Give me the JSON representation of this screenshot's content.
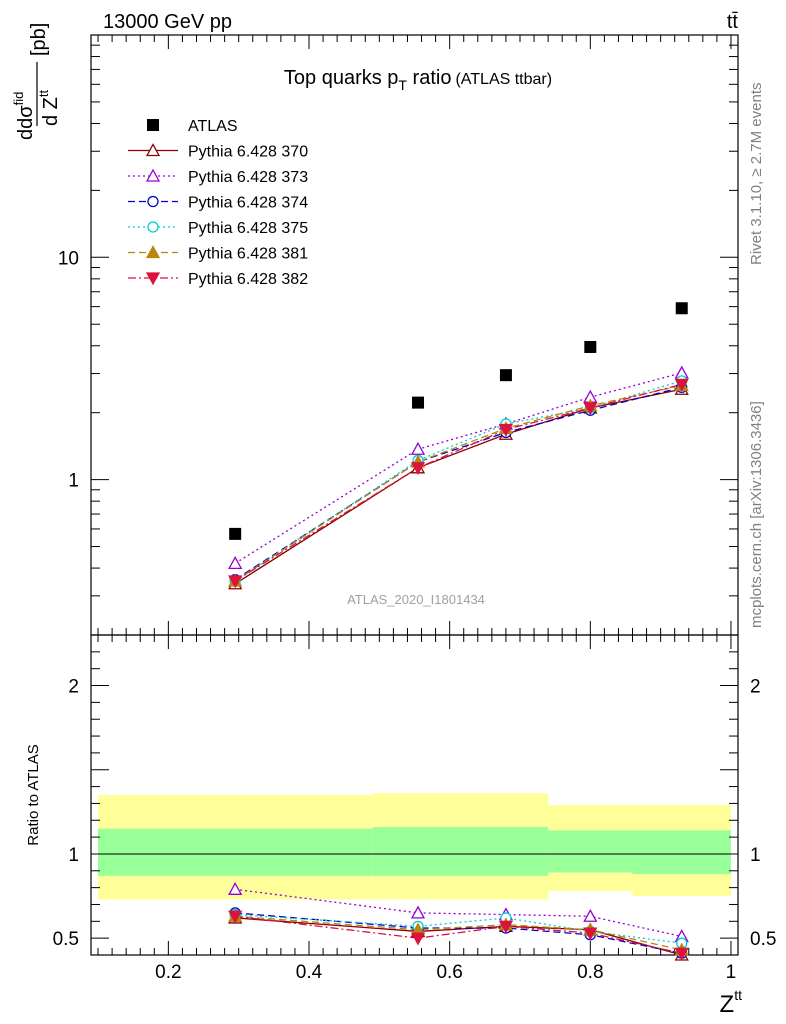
{
  "header": {
    "energy_label": "13000 GeV pp",
    "process_label": "tt̄",
    "side_top": "Rivet 3.1.10, ≥ 2.7M events",
    "side_bottom": "mcplots.cern.ch [arXiv:1306.3436]",
    "watermark": "ATLAS_2020_I1801434"
  },
  "colors": {
    "atlas": "#000000",
    "p370": "#8b0000",
    "p373": "#9400d3",
    "p374": "#0000cd",
    "p375": "#00ced1",
    "p381": "#b8860b",
    "p382": "#dc143c",
    "band_outer": "#ffff99",
    "band_inner": "#99ff99"
  },
  "chart_data": {
    "type": "scatter",
    "title": "Top quarks p",
    "title_sub": "T",
    "title_rest": " ratio",
    "title_paren": "(ATLAS ttbar)",
    "xlabel": "Z",
    "xlabel_sup": "tt",
    "ylabel_top": {
      "num": "dσ",
      "num_sup": "fid",
      "den": "d Z",
      "den_sup": "tt",
      "unit": "[pb]"
    },
    "ylabel_ratio": "Ratio to ATLAS",
    "xlim": [
      0.09,
      1.01
    ],
    "ylim_top": [
      0.2,
      100
    ],
    "yscale_top": "log",
    "ylim_ratio": [
      0.4,
      2.3
    ],
    "x_ticks": [
      "0.2",
      "0.4",
      "0.6",
      "0.8",
      "1"
    ],
    "y_ticks_top": [
      "1",
      "10"
    ],
    "y_ticks_ratio": [
      "0.5",
      "1",
      "2"
    ],
    "legend_position": "top-left",
    "x": [
      0.295,
      0.555,
      0.68,
      0.8,
      0.93
    ],
    "atlas": [
      0.57,
      2.22,
      2.95,
      3.95,
      5.9
    ],
    "series": [
      {
        "name": "Pythia 6.428 370",
        "key": "p370",
        "marker": "tri-up-open",
        "dash": "",
        "values": [
          0.34,
          1.13,
          1.6,
          2.1,
          2.55
        ]
      },
      {
        "name": "Pythia 6.428 373",
        "key": "p373",
        "marker": "tri-up-open",
        "dash": "2,3",
        "values": [
          0.42,
          1.37,
          1.78,
          2.35,
          3.02
        ]
      },
      {
        "name": "Pythia 6.428 374",
        "key": "p374",
        "marker": "circle-open",
        "dash": "7,4",
        "values": [
          0.355,
          1.2,
          1.63,
          2.05,
          2.6
        ]
      },
      {
        "name": "Pythia 6.428 375",
        "key": "p375",
        "marker": "circle-open",
        "dash": "2,3",
        "values": [
          0.35,
          1.22,
          1.78,
          2.1,
          2.78
        ]
      },
      {
        "name": "Pythia 6.428 381",
        "key": "p381",
        "marker": "tri-up-filled",
        "dash": "7,4",
        "values": [
          0.35,
          1.2,
          1.7,
          2.15,
          2.65
        ]
      },
      {
        "name": "Pythia 6.428 382",
        "key": "p382",
        "marker": "tri-down-filled",
        "dash": "8,3,2,3",
        "values": [
          0.35,
          1.13,
          1.68,
          2.1,
          2.68
        ]
      }
    ],
    "ratios": {
      "p370": [
        0.62,
        0.54,
        0.57,
        0.55,
        0.4
      ],
      "p373": [
        0.79,
        0.65,
        0.64,
        0.63,
        0.51
      ],
      "p374": [
        0.65,
        0.56,
        0.56,
        0.52,
        0.41
      ],
      "p375": [
        0.64,
        0.57,
        0.62,
        0.54,
        0.47
      ],
      "p381": [
        0.63,
        0.55,
        0.58,
        0.55,
        0.43
      ],
      "p382": [
        0.63,
        0.5,
        0.57,
        0.53,
        0.41
      ]
    },
    "bands": [
      {
        "x0": 0.1,
        "x1": 0.49,
        "outer": [
          0.73,
          1.35
        ],
        "inner": [
          0.87,
          1.15
        ]
      },
      {
        "x0": 0.49,
        "x1": 0.74,
        "outer": [
          0.73,
          1.36
        ],
        "inner": [
          0.87,
          1.16
        ]
      },
      {
        "x0": 0.74,
        "x1": 0.86,
        "outer": [
          0.78,
          1.29
        ],
        "inner": [
          0.89,
          1.14
        ]
      },
      {
        "x0": 0.86,
        "x1": 1.0,
        "outer": [
          0.75,
          1.29
        ],
        "inner": [
          0.88,
          1.14
        ]
      }
    ]
  }
}
